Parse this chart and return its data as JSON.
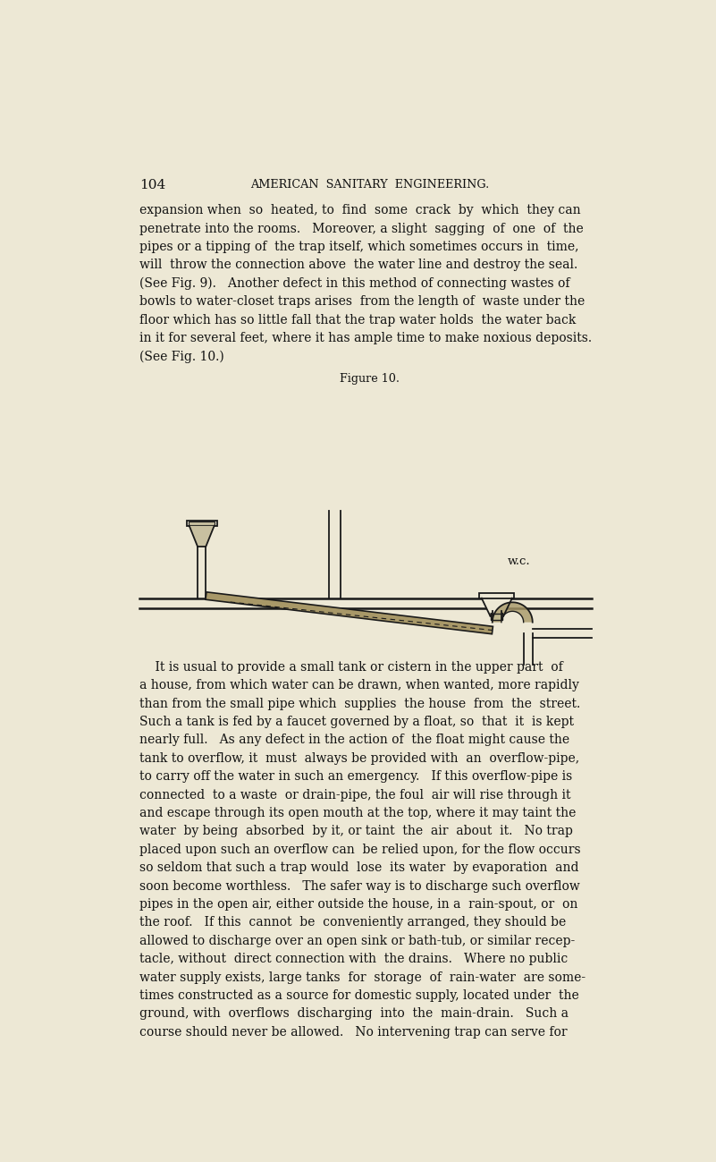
{
  "bg_color": "#ede8d5",
  "text_color": "#111111",
  "page_number": "104",
  "header": "AMERICAN  SANITARY  ENGINEERING.",
  "line_color": "#1a1a1a",
  "para1_lines": [
    "expansion when  so  heated, to  find  some  crack  by  which  they can",
    "penetrate into the rooms.   Moreover, a slight  sagging  of  one  of  the",
    "pipes or a tipping of  the trap itself, which sometimes occurs in  time,",
    "will  throw the connection above  the water line and destroy the seal.",
    "(See Fig. 9).   Another defect in this method of connecting wastes of",
    "bowls to water-closet traps arises  from the length of  waste under the",
    "floor which has so little fall that the trap water holds  the water back",
    "in it for several feet, where it has ample time to make noxious deposits.",
    "(See Fig. 10.)"
  ],
  "figure_caption": "Figure 10.",
  "para2_lines": [
    "    It is usual to provide a small tank or cistern in the upper part  of",
    "a house, from which water can be drawn, when wanted, more rapidly",
    "than from the small pipe which  supplies  the house  from  the  street.",
    "Such a tank is fed by a faucet governed by a float, so  that  it  is kept",
    "nearly full.   As any defect in the action of  the float might cause the",
    "tank to overflow, it  must  always be provided with  an  overflow-pipe,",
    "to carry off the water in such an emergency.   If this overflow-pipe is",
    "connected  to a waste  or drain-pipe, the foul  air will rise through it",
    "and escape through its open mouth at the top, where it may taint the",
    "water  by being  absorbed  by it, or taint  the  air  about  it.   No trap",
    "placed upon such an overflow can  be relied upon, for the flow occurs",
    "so seldom that such a trap would  lose  its water  by evaporation  and",
    "soon become worthless.   The safer way is to discharge such overflow",
    "pipes in the open air, either outside the house, in a  rain-spout, or  on",
    "the roof.   If this  cannot  be  conveniently arranged, they should be",
    "allowed to discharge over an open sink or bath-tub, or similar recep-",
    "tacle, without  direct connection with  the drains.   Where no public",
    "water supply exists, large tanks  for  storage  of  rain-water  are some-",
    "times constructed as a source for domestic supply, located under  the",
    "ground, with  overflows  discharging  into  the  main-drain.   Such a",
    "course should never be allowed.   No intervening trap can serve for"
  ]
}
